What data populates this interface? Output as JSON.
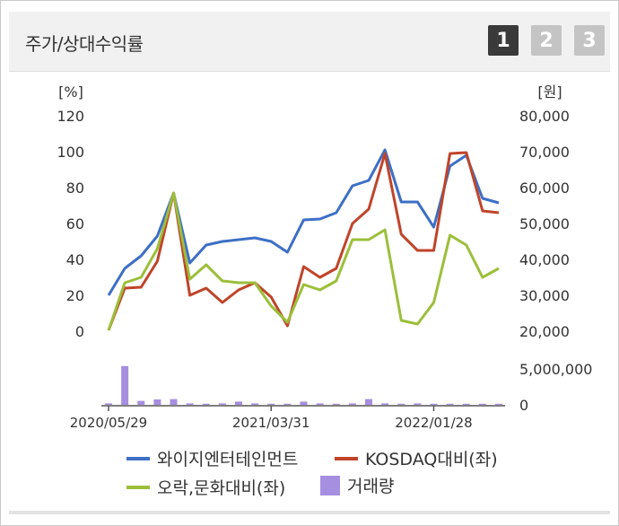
{
  "header": {
    "title": "주가/상대수익률",
    "pages": [
      "1",
      "2",
      "3"
    ],
    "active_page": 0
  },
  "chart_data": {
    "type": "line",
    "left_axis": {
      "unit": "[%]",
      "ticks": [
        "120",
        "100",
        "80",
        "60",
        "40",
        "20",
        "0"
      ],
      "range": [
        0,
        120
      ]
    },
    "right_axis": {
      "unit": "[원]",
      "ticks": [
        "80,000",
        "70,000",
        "60,000",
        "50,000",
        "40,000",
        "30,000",
        "20,000"
      ],
      "range": [
        20000,
        80000
      ]
    },
    "volume_axis": {
      "ticks": [
        "5,000,000",
        "0"
      ],
      "range": [
        0,
        5000000
      ]
    },
    "x_tick_labels": [
      "2020/05/29",
      "2021/03/31",
      "2022/01/28"
    ],
    "x_tick_index": [
      0,
      10,
      20
    ],
    "grid": false,
    "series": [
      {
        "name": "와이지엔터테인먼트",
        "color": "#3d6fc5",
        "values": [
          20,
          35,
          42,
          53,
          77,
          38,
          48,
          50,
          51,
          52,
          50,
          44,
          62,
          62.5,
          66,
          81,
          84,
          101,
          72,
          72,
          58,
          92,
          98,
          74,
          71.5
        ]
      },
      {
        "name": "KOSDAQ대비(좌)",
        "color": "#c0442a",
        "values": [
          0.5,
          24,
          24.5,
          39,
          77,
          20,
          24,
          16,
          23,
          27,
          19,
          3,
          36,
          30,
          35,
          60,
          68,
          99,
          54,
          45,
          45,
          99,
          99.5,
          67,
          66
        ]
      },
      {
        "name": "오락,문화대비(좌)",
        "color": "#9bbf3a",
        "values": [
          0.5,
          27,
          30,
          46,
          77,
          29,
          37,
          28,
          27,
          27,
          14,
          5,
          26,
          23,
          28,
          51,
          51,
          56.5,
          6,
          4,
          16,
          53.5,
          48,
          30,
          35
        ]
      }
    ],
    "volume": {
      "name": "거래량",
      "color": "#a68ee0",
      "values": [
        200000,
        5400000,
        550000,
        750000,
        800000,
        200000,
        150000,
        200000,
        450000,
        200000,
        150000,
        150000,
        450000,
        200000,
        150000,
        200000,
        800000,
        200000,
        150000,
        200000,
        150000,
        150000,
        150000,
        150000,
        150000
      ]
    }
  }
}
